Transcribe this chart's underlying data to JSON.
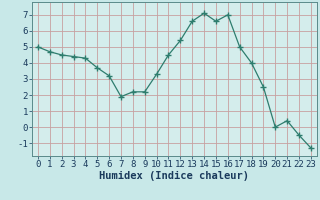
{
  "x": [
    0,
    1,
    2,
    3,
    4,
    5,
    6,
    7,
    8,
    9,
    10,
    11,
    12,
    13,
    14,
    15,
    16,
    17,
    18,
    19,
    20,
    21,
    22,
    23
  ],
  "y": [
    5.0,
    4.7,
    4.5,
    4.4,
    4.3,
    3.7,
    3.2,
    1.9,
    2.2,
    2.2,
    3.3,
    4.5,
    5.4,
    6.6,
    7.1,
    6.6,
    7.0,
    5.0,
    4.0,
    2.5,
    0.0,
    0.4,
    -0.5,
    -1.3
  ],
  "line_color": "#2e7d6e",
  "marker": "+",
  "marker_size": 4,
  "bg_color": "#c8e8e8",
  "plot_bg_color": "#d4edec",
  "grid_color": "#c8a0a0",
  "xlabel": "Humidex (Indice chaleur)",
  "ylim": [
    -1.8,
    7.8
  ],
  "xlim": [
    -0.5,
    23.5
  ],
  "yticks": [
    -1,
    0,
    1,
    2,
    3,
    4,
    5,
    6,
    7
  ],
  "xticks": [
    0,
    1,
    2,
    3,
    4,
    5,
    6,
    7,
    8,
    9,
    10,
    11,
    12,
    13,
    14,
    15,
    16,
    17,
    18,
    19,
    20,
    21,
    22,
    23
  ],
  "tick_fontsize": 6.5,
  "xlabel_fontsize": 7.5,
  "title_color": "#1a3a5c"
}
